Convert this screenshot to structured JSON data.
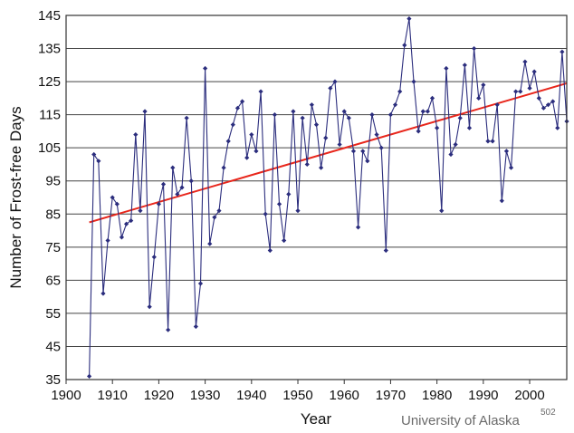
{
  "chart_data": {
    "type": "line",
    "title": "",
    "xlabel": "Year",
    "ylabel": "Number of Frost-free Days",
    "xlim": [
      1900,
      2008
    ],
    "ylim": [
      35,
      145
    ],
    "x_ticks": [
      "1900",
      "1910",
      "1920",
      "1930",
      "1940",
      "1950",
      "1960",
      "1970",
      "1980",
      "1990",
      "2000"
    ],
    "y_ticks": [
      "35",
      "45",
      "55",
      "65",
      "75",
      "85",
      "95",
      "105",
      "115",
      "125",
      "135",
      "145"
    ],
    "grid": "horizontal",
    "credit": "University of Alaska",
    "credit_superscript": "502",
    "series": [
      {
        "x": [
          1905,
          1906,
          1907,
          1908,
          1909,
          1910,
          1911,
          1912,
          1913,
          1914,
          1915,
          1916,
          1917,
          1918,
          1919,
          1920,
          1921,
          1922,
          1923,
          1924,
          1925,
          1926,
          1927,
          1928,
          1929,
          1930,
          1931,
          1932,
          1933,
          1934,
          1935,
          1936,
          1937,
          1938,
          1939,
          1940,
          1941,
          1942,
          1943,
          1944,
          1945,
          1946,
          1947,
          1948,
          1949,
          1950,
          1951,
          1952,
          1953,
          1954,
          1955,
          1956,
          1957,
          1958,
          1959,
          1960,
          1961,
          1962,
          1963,
          1964,
          1965,
          1966,
          1967,
          1968,
          1969,
          1970,
          1971,
          1972,
          1973,
          1974,
          1975,
          1976,
          1977,
          1978,
          1979,
          1980,
          1981,
          1982,
          1983,
          1984,
          1985,
          1986,
          1987,
          1988,
          1989,
          1990,
          1991,
          1992,
          1993,
          1994,
          1995,
          1996,
          1997,
          1998,
          1999,
          2000,
          2001,
          2002,
          2003,
          2004,
          2005,
          2006,
          2007,
          2008
        ],
        "values": [
          36,
          103,
          101,
          61,
          77,
          90,
          88,
          78,
          82,
          83,
          109,
          86,
          116,
          57,
          72,
          88,
          94,
          50,
          99,
          91,
          93,
          114,
          95,
          51,
          64,
          129,
          76,
          84,
          86,
          99,
          107,
          112,
          117,
          119,
          102,
          109,
          104,
          122,
          85,
          74,
          115,
          88,
          77,
          91,
          116,
          86,
          114,
          100,
          118,
          112,
          99,
          108,
          123,
          125,
          106,
          116,
          114,
          104,
          81,
          104,
          101,
          115,
          109,
          105,
          74,
          115,
          118,
          122,
          136,
          144,
          125,
          110,
          116,
          116,
          120,
          111,
          86,
          129,
          103,
          106,
          114,
          130,
          111,
          135,
          120,
          124,
          107,
          107,
          118,
          89,
          104,
          99,
          122,
          122,
          131,
          123,
          128,
          120,
          117,
          118,
          119,
          111,
          134,
          113
        ],
        "color": "#2b2d7d"
      }
    ],
    "trendline": {
      "x": [
        1905,
        2008
      ],
      "y": [
        82.5,
        124.5
      ],
      "color": "#e8261b"
    }
  }
}
